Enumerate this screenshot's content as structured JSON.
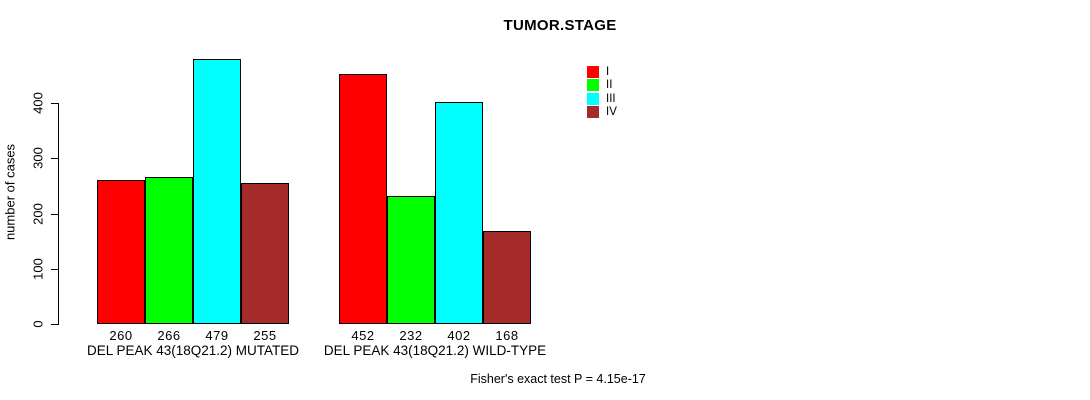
{
  "title": "TUMOR.STAGE",
  "ylabel": "number of cases",
  "footnote": "Fisher's exact test P = 4.15e-17",
  "chart_data": {
    "type": "bar",
    "title": "TUMOR.STAGE",
    "xlabel": "",
    "ylabel": "number of cases",
    "ylim": [
      0,
      400
    ],
    "yticks": [
      "0",
      "100",
      "200",
      "300",
      "400"
    ],
    "grid": false,
    "legend_position": "top-right",
    "categories": [
      "DEL PEAK 43(18Q21.2) MUTATED",
      "DEL PEAK 43(18Q21.2) WILD-TYPE"
    ],
    "series": [
      {
        "name": "I",
        "color": "#FF0000",
        "values": [
          260,
          452
        ]
      },
      {
        "name": "II",
        "color": "#00FF00",
        "values": [
          266,
          232
        ]
      },
      {
        "name": "III",
        "color": "#00FFFF",
        "values": [
          479,
          402
        ]
      },
      {
        "name": "IV",
        "color": "#A52A2A",
        "values": [
          255,
          168
        ]
      }
    ],
    "value_labels_shown": true,
    "annotation": "Fisher's exact test P = 4.15e-17"
  }
}
